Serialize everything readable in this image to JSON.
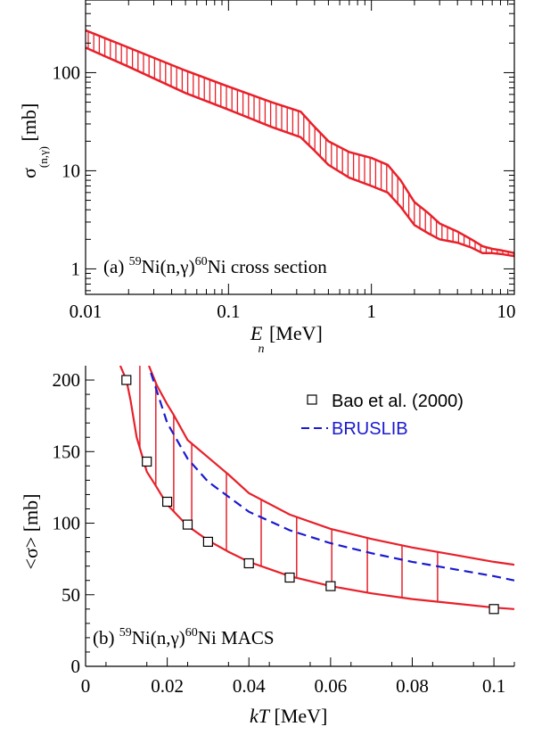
{
  "chart_data": [
    {
      "type": "area",
      "panel_label": {
        "text": "(a) ",
        "a1": "59",
        "b1": "Ni(n,γ)",
        "a2": "60",
        "b2": "Ni cross section"
      },
      "xlabel": {
        "main": "E",
        "sub": "n",
        "unit": " [MeV]"
      },
      "ylabel": {
        "main": "σ",
        "sub": "(n,γ)",
        "unit": " [mb]"
      },
      "xscale": "log",
      "yscale": "log",
      "xlim": [
        0.01,
        10
      ],
      "ylim": [
        0.55,
        550
      ],
      "xticks": [
        {
          "value": 0.01,
          "label": "0.01"
        },
        {
          "value": 0.1,
          "label": "0.1"
        },
        {
          "value": 1,
          "label": "1"
        },
        {
          "value": 10,
          "label": "10"
        }
      ],
      "yticks": [
        {
          "value": 1,
          "label": "1"
        },
        {
          "value": 10,
          "label": "10"
        },
        {
          "value": 100,
          "label": "100"
        }
      ],
      "band_color": "#e8202a",
      "series": [
        {
          "role": "upper",
          "x": [
            0.01,
            0.02,
            0.05,
            0.1,
            0.2,
            0.32,
            0.4,
            0.5,
            0.7,
            1.0,
            1.3,
            1.6,
            2.0,
            2.5,
            3.0,
            4.0,
            5.0,
            6.0,
            7.0,
            8.0,
            10.0
          ],
          "y": [
            270,
            180,
            105,
            72,
            50,
            40,
            28,
            20,
            15.5,
            13.5,
            11.5,
            8.0,
            4.8,
            3.7,
            2.9,
            2.4,
            2.0,
            1.7,
            1.6,
            1.55,
            1.45
          ]
        },
        {
          "role": "lower",
          "x": [
            0.01,
            0.02,
            0.05,
            0.1,
            0.2,
            0.32,
            0.4,
            0.5,
            0.7,
            1.0,
            1.3,
            1.6,
            2.0,
            2.5,
            3.0,
            4.0,
            5.0,
            6.0,
            7.0,
            8.0,
            10.0
          ],
          "y": [
            180,
            115,
            62,
            42,
            28,
            22,
            16,
            11.5,
            8.5,
            7.0,
            6.0,
            4.3,
            2.8,
            2.3,
            2.0,
            1.85,
            1.65,
            1.45,
            1.45,
            1.42,
            1.35
          ]
        }
      ]
    },
    {
      "type": "line",
      "panel_label": {
        "text": "(b) ",
        "a1": "59",
        "b1": "Ni(n,γ)",
        "a2": "60",
        "b2": "Ni MACS"
      },
      "xlabel": {
        "main": "kT",
        "unit": " [MeV]"
      },
      "ylabel": {
        "main": "<σ> [mb]"
      },
      "xlim": [
        0,
        0.105
      ],
      "ylim": [
        0,
        210
      ],
      "xticks": [
        {
          "value": 0,
          "label": "0"
        },
        {
          "value": 0.02,
          "label": "0.02"
        },
        {
          "value": 0.04,
          "label": "0.04"
        },
        {
          "value": 0.06,
          "label": "0.06"
        },
        {
          "value": 0.08,
          "label": "0.08"
        },
        {
          "value": 0.1,
          "label": "0.1"
        }
      ],
      "yticks": [
        {
          "value": 0,
          "label": "0"
        },
        {
          "value": 50,
          "label": "50"
        },
        {
          "value": 100,
          "label": "100"
        },
        {
          "value": 150,
          "label": "150"
        },
        {
          "value": 200,
          "label": "200"
        }
      ],
      "band_color": "#e8202a",
      "band_hatch_x": [
        0.0133,
        0.0172,
        0.0216,
        0.026,
        0.0345,
        0.043,
        0.0517,
        0.0603,
        0.069,
        0.0775,
        0.0862
      ],
      "band": {
        "upper": {
          "x": [
            0.0155,
            0.0175,
            0.02,
            0.0215,
            0.025,
            0.03,
            0.035,
            0.04,
            0.05,
            0.06,
            0.07,
            0.08,
            0.09,
            0.1,
            0.105
          ],
          "y": [
            210,
            196,
            183,
            176,
            158,
            146,
            134,
            121,
            106,
            96,
            89,
            83,
            78,
            73,
            71
          ]
        },
        "lower": {
          "x": [
            0.0085,
            0.01,
            0.011,
            0.0125,
            0.015,
            0.017,
            0.02,
            0.025,
            0.03,
            0.035,
            0.04,
            0.05,
            0.06,
            0.07,
            0.08,
            0.09,
            0.1,
            0.105
          ],
          "y": [
            210,
            200,
            186,
            160,
            136,
            127,
            113,
            98,
            88,
            80,
            73,
            63,
            56,
            51,
            47,
            44,
            41,
            40
          ]
        }
      },
      "series": [
        {
          "name": "Bao et al. (2000)",
          "marker": "open-square",
          "color": "#000000",
          "x": [
            0.01,
            0.015,
            0.02,
            0.025,
            0.03,
            0.04,
            0.05,
            0.06,
            0.1
          ],
          "y": [
            200,
            143,
            115,
            99,
            87,
            72,
            62,
            56,
            40
          ]
        },
        {
          "name": "BRUSLIB",
          "style": "dashed",
          "color": "#1a1ad0",
          "x": [
            0.016,
            0.02,
            0.025,
            0.03,
            0.04,
            0.05,
            0.06,
            0.07,
            0.08,
            0.09,
            0.1,
            0.105
          ],
          "y": [
            205,
            170,
            145,
            129,
            108,
            95,
            86,
            79,
            73,
            68,
            63,
            60
          ]
        }
      ],
      "legend": {
        "placement": "top-right",
        "items": [
          {
            "label": "Bao et al. (2000)"
          },
          {
            "label": "BRUSLIB"
          }
        ]
      }
    }
  ]
}
